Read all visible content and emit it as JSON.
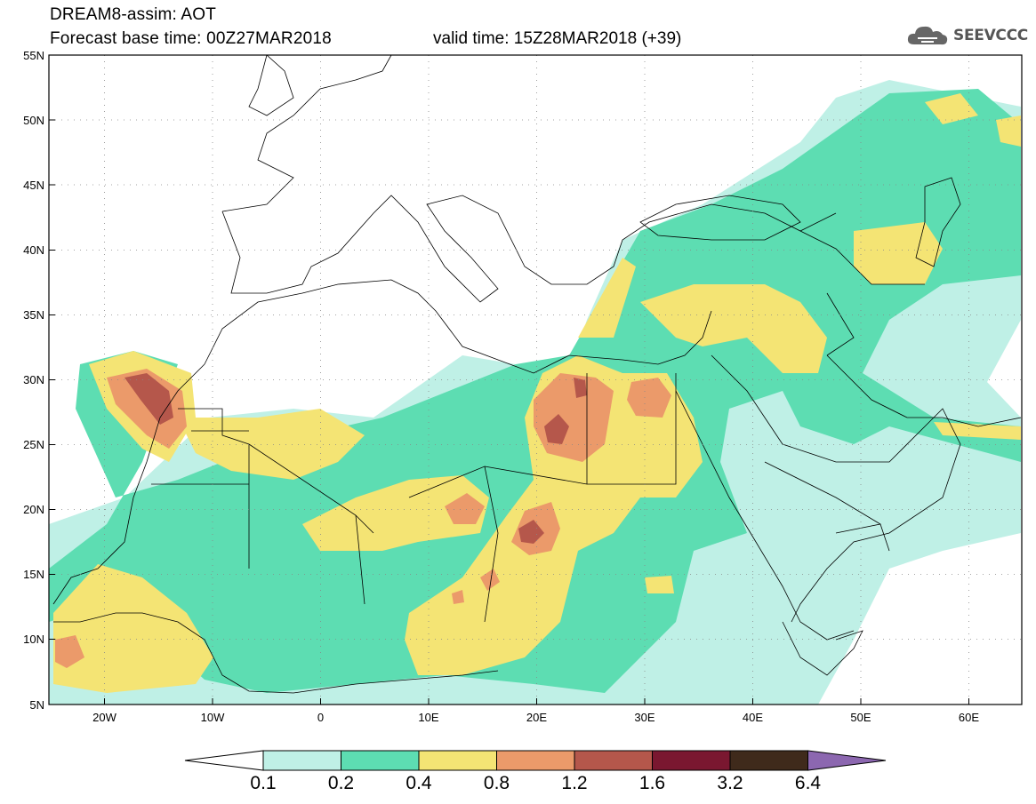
{
  "header": {
    "model_line": "DREAM8-assim: AOT",
    "base_time_line": "Forecast base time: 00Z27MAR2018",
    "valid_time_line": "valid time: 15Z28MAR2018 (+39)",
    "logo_text": "SEEVCCC",
    "logo_icon": "cloud-icon"
  },
  "map": {
    "projection": "lat-lon",
    "lon_range": [
      -25,
      65
    ],
    "lat_range": [
      5,
      55
    ],
    "grid": "dotted",
    "lat_labels": [
      "55N",
      "50N",
      "45N",
      "40N",
      "35N",
      "30N",
      "25N",
      "20N",
      "15N",
      "10N",
      "5N"
    ],
    "lon_labels": [
      "20W",
      "10W",
      "0",
      "10E",
      "20E",
      "30E",
      "40E",
      "50E",
      "60E"
    ],
    "lat_values": [
      55,
      50,
      45,
      40,
      35,
      30,
      25,
      20,
      15,
      10,
      5
    ],
    "lon_values": [
      -20,
      -10,
      0,
      10,
      20,
      30,
      40,
      50,
      60
    ]
  },
  "colorbar": {
    "labels": [
      "0.1",
      "0.2",
      "0.4",
      "0.8",
      "1.2",
      "1.6",
      "3.2",
      "6.4"
    ],
    "colors": [
      "#bff0e6",
      "#5dddb2",
      "#f4e474",
      "#eb9a6a",
      "#b5574b",
      "#7a1730",
      "#3f2a1b",
      "#8c67b0"
    ],
    "low_end_color": "#ffffff"
  }
}
